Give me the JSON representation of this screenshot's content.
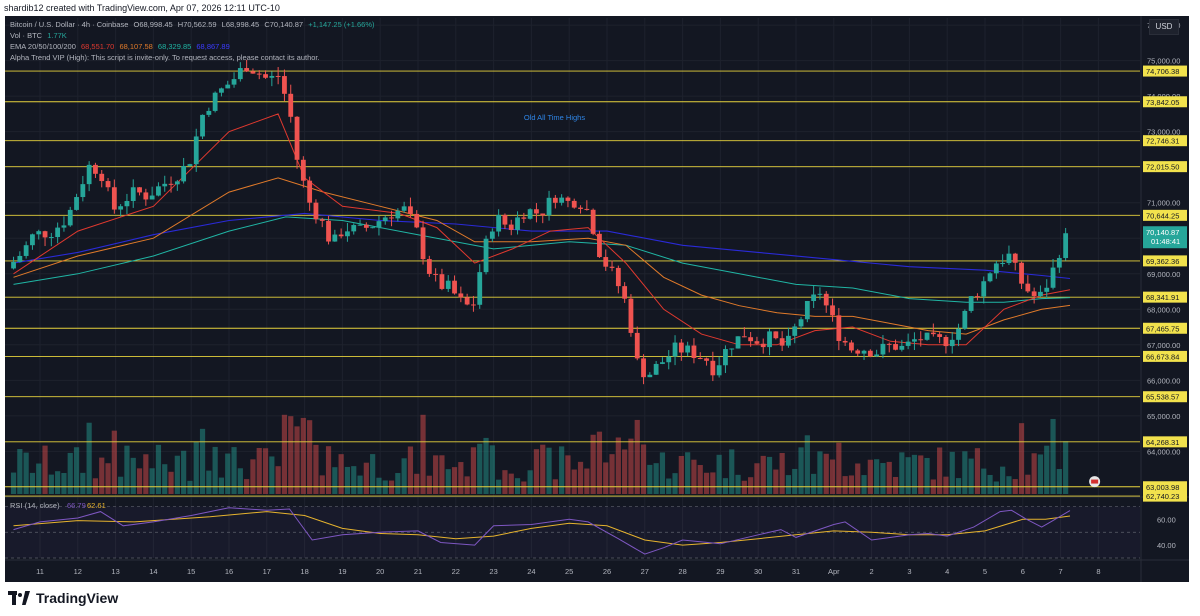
{
  "header": {
    "title": "shardib12 created with TradingView.com, Apr 07, 2026 12:11 UTC-10"
  },
  "legend": {
    "symbol": "Bitcoin / U.S. Dollar · 4h · Coinbase",
    "ohlc": {
      "o": "O68,998.45",
      "h": "H70,562.59",
      "l": "L68,998.45",
      "c": "C70,140.87",
      "chg": "+1,147.25 (+1.66%)"
    },
    "vol_label": "Vol · BTC",
    "vol_value": "1.77K",
    "ema_label": "EMA 20/50/100/200",
    "ema_values": [
      "68,551.70",
      "68,107.58",
      "68,329.85",
      "68,867.89"
    ],
    "indicator_note": "Alpha Trend VIP (High): This script is invite-only. To request access, please contact its author.",
    "rsi_label": "RSI (14, close)",
    "rsi_values": [
      "66.79",
      "62.61"
    ]
  },
  "currency": "USD",
  "annotation": "Old All Time Highs",
  "price_axis": {
    "ticks": [
      "76,000.00",
      "75,000.00",
      "74,000.00",
      "73,000.00",
      "72,000.00",
      "71,000.00",
      "70,000.00",
      "69,000.00",
      "68,000.00",
      "67,000.00",
      "66,000.00",
      "65,000.00",
      "64,000.00",
      "63,000.00"
    ],
    "current_price": "70,140.87",
    "countdown": "01:48:41"
  },
  "rsi_axis": {
    "ticks": [
      "60.00",
      "40.00"
    ]
  },
  "time_axis": [
    "11",
    "12",
    "13",
    "14",
    "15",
    "16",
    "17",
    "18",
    "19",
    "20",
    "21",
    "22",
    "23",
    "24",
    "25",
    "26",
    "27",
    "28",
    "29",
    "30",
    "31",
    "Apr",
    "2",
    "3",
    "4",
    "5",
    "6",
    "7",
    "8"
  ],
  "colors": {
    "background": "#131722",
    "grid": "#1e222d",
    "up": "#26a69a",
    "down": "#ef5350",
    "level_line": "#e6d23c",
    "ema20": "#e0392f",
    "ema50": "#e07a2a",
    "ema100": "#20b5a4",
    "ema200": "#2a2ad8",
    "rsi": "#7e57c2",
    "rsi_ma": "#e6b32e",
    "annotation": "#2f86e8"
  },
  "brand": "TradingView",
  "chart_data": {
    "type": "candlestick",
    "title": "Bitcoin / U.S. Dollar · 4h · Coinbase",
    "ylim": [
      62800,
      76200
    ],
    "ylabel": "USD",
    "horizontal_levels": [
      74706.38,
      73842.05,
      72746.31,
      72015.5,
      70644.25,
      69362.36,
      68341.91,
      67465.75,
      66673.84,
      65538.57,
      64268.31,
      63003.98,
      62740.23
    ],
    "level_labels": [
      "74,706.38",
      "73,842.05",
      "72,746.31",
      "72,015.50",
      "70,644.25",
      "69,362.36",
      "68,341.91",
      "67,465.75",
      "66,673.84",
      "65,538.57",
      "64,268.31",
      "63,003.98",
      "62,740.23"
    ],
    "anchors": [
      {
        "day": 10.3,
        "price": 69150
      },
      {
        "day": 10.7,
        "price": 69600
      },
      {
        "day": 11.0,
        "price": 70100
      },
      {
        "day": 11.5,
        "price": 70200
      },
      {
        "day": 11.9,
        "price": 70600
      },
      {
        "day": 12.2,
        "price": 71400
      },
      {
        "day": 12.5,
        "price": 72100
      },
      {
        "day": 12.8,
        "price": 71800
      },
      {
        "day": 13.1,
        "price": 70800
      },
      {
        "day": 13.4,
        "price": 71100
      },
      {
        "day": 13.7,
        "price": 71300
      },
      {
        "day": 14.0,
        "price": 71200
      },
      {
        "day": 14.4,
        "price": 71500
      },
      {
        "day": 14.8,
        "price": 71800
      },
      {
        "day": 15.1,
        "price": 72100
      },
      {
        "day": 15.5,
        "price": 73600
      },
      {
        "day": 15.9,
        "price": 74100
      },
      {
        "day": 16.2,
        "price": 74400
      },
      {
        "day": 16.4,
        "price": 74600
      },
      {
        "day": 16.6,
        "price": 74900
      },
      {
        "day": 16.9,
        "price": 74700
      },
      {
        "day": 17.2,
        "price": 74450
      },
      {
        "day": 17.5,
        "price": 74600
      },
      {
        "day": 17.8,
        "price": 73400
      },
      {
        "day": 18.0,
        "price": 72000
      },
      {
        "day": 18.3,
        "price": 71000
      },
      {
        "day": 18.6,
        "price": 70500
      },
      {
        "day": 18.9,
        "price": 69800
      },
      {
        "day": 19.2,
        "price": 70300
      },
      {
        "day": 19.6,
        "price": 70200
      },
      {
        "day": 20.0,
        "price": 70400
      },
      {
        "day": 20.4,
        "price": 70700
      },
      {
        "day": 20.8,
        "price": 70800
      },
      {
        "day": 21.1,
        "price": 70300
      },
      {
        "day": 21.4,
        "price": 69200
      },
      {
        "day": 21.7,
        "price": 68700
      },
      {
        "day": 22.0,
        "price": 68600
      },
      {
        "day": 22.3,
        "price": 68200
      },
      {
        "day": 22.6,
        "price": 68000
      },
      {
        "day": 22.9,
        "price": 69600
      },
      {
        "day": 23.2,
        "price": 70600
      },
      {
        "day": 23.6,
        "price": 70300
      },
      {
        "day": 24.0,
        "price": 70800
      },
      {
        "day": 24.4,
        "price": 70700
      },
      {
        "day": 24.8,
        "price": 71200
      },
      {
        "day": 25.1,
        "price": 71000
      },
      {
        "day": 25.4,
        "price": 71100
      },
      {
        "day": 25.7,
        "price": 70700
      },
      {
        "day": 26.0,
        "price": 69500
      },
      {
        "day": 26.3,
        "price": 69000
      },
      {
        "day": 26.6,
        "price": 68400
      },
      {
        "day": 26.8,
        "price": 67500
      },
      {
        "day": 27.0,
        "price": 66300
      },
      {
        "day": 27.3,
        "price": 66200
      },
      {
        "day": 27.7,
        "price": 66600
      },
      {
        "day": 28.0,
        "price": 66900
      },
      {
        "day": 28.4,
        "price": 66800
      },
      {
        "day": 28.8,
        "price": 66600
      },
      {
        "day": 29.0,
        "price": 66300
      },
      {
        "day": 29.4,
        "price": 67000
      },
      {
        "day": 29.8,
        "price": 67300
      },
      {
        "day": 30.2,
        "price": 67100
      },
      {
        "day": 30.5,
        "price": 67200
      },
      {
        "day": 30.9,
        "price": 66900
      },
      {
        "day": 31.2,
        "price": 67600
      },
      {
        "day": 31.5,
        "price": 68100
      },
      {
        "day": 31.8,
        "price": 68500
      },
      {
        "day": 32.0,
        "price": 68000
      },
      {
        "day": 32.3,
        "price": 67300
      },
      {
        "day": 32.6,
        "price": 66900
      },
      {
        "day": 33.0,
        "price": 66900
      },
      {
        "day": 33.3,
        "price": 66800
      },
      {
        "day": 33.7,
        "price": 67000
      },
      {
        "day": 34.0,
        "price": 66900
      },
      {
        "day": 34.4,
        "price": 67200
      },
      {
        "day": 34.8,
        "price": 67100
      },
      {
        "day": 35.1,
        "price": 67100
      },
      {
        "day": 35.5,
        "price": 67500
      },
      {
        "day": 35.8,
        "price": 68300
      },
      {
        "day": 36.1,
        "price": 68700
      },
      {
        "day": 36.4,
        "price": 69300
      },
      {
        "day": 36.8,
        "price": 69500
      },
      {
        "day": 37.1,
        "price": 68800
      },
      {
        "day": 37.4,
        "price": 68400
      },
      {
        "day": 37.6,
        "price": 68300
      },
      {
        "day": 37.9,
        "price": 68900
      },
      {
        "day": 38.1,
        "price": 69500
      },
      {
        "day": 38.25,
        "price": 70140.87
      }
    ],
    "ema20": [
      [
        10.3,
        69000
      ],
      [
        12.0,
        70200
      ],
      [
        14.0,
        70900
      ],
      [
        16.0,
        73000
      ],
      [
        17.3,
        73500
      ],
      [
        18.0,
        71700
      ],
      [
        19.0,
        70900
      ],
      [
        20.5,
        70700
      ],
      [
        21.5,
        70300
      ],
      [
        22.5,
        69300
      ],
      [
        23.5,
        69700
      ],
      [
        24.5,
        70200
      ],
      [
        25.5,
        70300
      ],
      [
        26.5,
        69300
      ],
      [
        27.5,
        68000
      ],
      [
        28.5,
        67300
      ],
      [
        29.5,
        67000
      ],
      [
        30.5,
        67000
      ],
      [
        31.5,
        67400
      ],
      [
        32.5,
        67500
      ],
      [
        33.5,
        67100
      ],
      [
        34.5,
        67000
      ],
      [
        35.5,
        67000
      ],
      [
        36.5,
        68000
      ],
      [
        37.5,
        68400
      ],
      [
        38.25,
        68552
      ]
    ],
    "ema50": [
      [
        10.3,
        68900
      ],
      [
        12.0,
        69500
      ],
      [
        14.0,
        70000
      ],
      [
        16.0,
        71300
      ],
      [
        17.3,
        71700
      ],
      [
        18.5,
        71300
      ],
      [
        20.0,
        70900
      ],
      [
        21.5,
        70500
      ],
      [
        22.5,
        69900
      ],
      [
        24.0,
        69900
      ],
      [
        25.5,
        70000
      ],
      [
        26.5,
        69800
      ],
      [
        27.5,
        68900
      ],
      [
        28.5,
        68400
      ],
      [
        29.5,
        68100
      ],
      [
        30.5,
        67900
      ],
      [
        31.5,
        67800
      ],
      [
        32.5,
        67800
      ],
      [
        33.5,
        67600
      ],
      [
        34.5,
        67400
      ],
      [
        35.5,
        67300
      ],
      [
        36.5,
        67700
      ],
      [
        37.5,
        68000
      ],
      [
        38.25,
        68108
      ]
    ],
    "ema100": [
      [
        10.3,
        68700
      ],
      [
        12.0,
        69000
      ],
      [
        14.0,
        69500
      ],
      [
        16.0,
        70200
      ],
      [
        17.5,
        70600
      ],
      [
        19.0,
        70500
      ],
      [
        21.0,
        70100
      ],
      [
        23.0,
        69700
      ],
      [
        25.0,
        69900
      ],
      [
        26.5,
        69800
      ],
      [
        28.0,
        69300
      ],
      [
        29.5,
        69000
      ],
      [
        31.0,
        68700
      ],
      [
        32.5,
        68600
      ],
      [
        34.0,
        68300
      ],
      [
        35.5,
        68200
      ],
      [
        36.5,
        68200
      ],
      [
        37.5,
        68300
      ],
      [
        38.25,
        68330
      ]
    ],
    "ema200": [
      [
        10.3,
        69300
      ],
      [
        12.0,
        69600
      ],
      [
        14.0,
        70100
      ],
      [
        16.0,
        70500
      ],
      [
        18.0,
        70700
      ],
      [
        20.0,
        70500
      ],
      [
        22.0,
        70400
      ],
      [
        24.0,
        70200
      ],
      [
        26.0,
        70200
      ],
      [
        28.0,
        69800
      ],
      [
        30.0,
        69600
      ],
      [
        32.0,
        69400
      ],
      [
        34.0,
        69200
      ],
      [
        36.0,
        69100
      ],
      [
        37.5,
        68950
      ],
      [
        38.25,
        68868
      ]
    ],
    "rsi_ylim": [
      30,
      75
    ],
    "rsi": [
      [
        10.3,
        52
      ],
      [
        11.0,
        58
      ],
      [
        12.0,
        61
      ],
      [
        12.6,
        66
      ],
      [
        13.2,
        55
      ],
      [
        14.0,
        58
      ],
      [
        15.0,
        63
      ],
      [
        16.0,
        69
      ],
      [
        17.0,
        67
      ],
      [
        17.6,
        68
      ],
      [
        18.2,
        44
      ],
      [
        19.0,
        48
      ],
      [
        20.0,
        50
      ],
      [
        21.0,
        51
      ],
      [
        21.6,
        42
      ],
      [
        22.5,
        40
      ],
      [
        23.0,
        55
      ],
      [
        24.0,
        56
      ],
      [
        25.0,
        60
      ],
      [
        25.5,
        58
      ],
      [
        26.3,
        45
      ],
      [
        27.0,
        33
      ],
      [
        27.5,
        38
      ],
      [
        28.0,
        44
      ],
      [
        29.0,
        41
      ],
      [
        30.0,
        48
      ],
      [
        30.6,
        52
      ],
      [
        31.0,
        46
      ],
      [
        32.0,
        56
      ],
      [
        32.3,
        58
      ],
      [
        33.0,
        44
      ],
      [
        34.0,
        48
      ],
      [
        34.5,
        49
      ],
      [
        35.0,
        47
      ],
      [
        35.7,
        54
      ],
      [
        36.4,
        66
      ],
      [
        36.7,
        67
      ],
      [
        37.1,
        60
      ],
      [
        37.5,
        54
      ],
      [
        37.8,
        59
      ],
      [
        38.25,
        66.79
      ]
    ],
    "rsi_ma": [
      [
        10.3,
        55
      ],
      [
        12.0,
        59
      ],
      [
        13.5,
        58
      ],
      [
        15.5,
        62
      ],
      [
        17.0,
        66
      ],
      [
        18.0,
        63
      ],
      [
        19.0,
        53
      ],
      [
        20.0,
        49
      ],
      [
        21.0,
        48
      ],
      [
        22.0,
        45
      ],
      [
        23.0,
        47
      ],
      [
        24.0,
        53
      ],
      [
        25.0,
        57
      ],
      [
        26.0,
        55
      ],
      [
        27.0,
        44
      ],
      [
        28.0,
        40
      ],
      [
        29.0,
        42
      ],
      [
        30.0,
        45
      ],
      [
        31.0,
        48
      ],
      [
        32.0,
        51
      ],
      [
        33.0,
        50
      ],
      [
        34.0,
        48
      ],
      [
        35.0,
        48
      ],
      [
        36.0,
        51
      ],
      [
        37.0,
        60
      ],
      [
        37.6,
        60
      ],
      [
        38.25,
        62.61
      ]
    ]
  }
}
